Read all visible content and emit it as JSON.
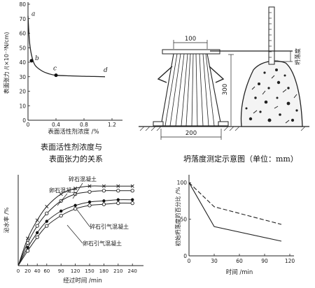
{
  "captions": {
    "surface_tension_line1": "表面活性剂浓度与",
    "surface_tension_line2": "表面张力的关系",
    "slump": "坍落度测定示意图（单位：mm）"
  },
  "slump_diagram": {
    "dim_top": "100",
    "dim_bottom": "200",
    "dim_height": "300",
    "slump_label": "坍落度"
  },
  "chart_data": [
    {
      "type": "line",
      "xlabel": "表面活性剂浓度 /%",
      "ylabel": "表面张力 /(×10⁻³N/cm)",
      "xlim": [
        0,
        1.2
      ],
      "ylim": [
        0,
        80
      ],
      "xticks": [
        "0",
        "0.4",
        "0.8",
        "1.2"
      ],
      "yticks": [
        "0",
        "10",
        "20",
        "30",
        "40",
        "50",
        "60",
        "70",
        "80"
      ],
      "series": [
        {
          "x": [
            0,
            0.02,
            0.05,
            0.1,
            0.2,
            0.3,
            0.4,
            0.6,
            0.8,
            1.0,
            1.1
          ],
          "y": [
            72,
            55,
            45,
            38,
            34,
            32,
            31,
            30.6,
            30.3,
            30.1,
            30
          ]
        }
      ],
      "annotations": [
        {
          "label": "a",
          "x": 0,
          "y": 72
        },
        {
          "label": "b",
          "x": 0.05,
          "y": 41
        },
        {
          "label": "c",
          "x": 0.4,
          "y": 31
        },
        {
          "label": "d",
          "x": 1.1,
          "y": 30
        }
      ]
    },
    {
      "type": "line",
      "xlabel": "经过时间 /min",
      "ylabel": "泌水率 /%",
      "xticks": [
        "0",
        "20",
        "40",
        "60",
        "90",
        "120",
        "150",
        "180",
        "210",
        "240"
      ],
      "xlim": [
        0,
        250
      ],
      "ylim": [
        0,
        8
      ],
      "series": [
        {
          "name": "碎石混凝土",
          "marker": "x",
          "x": [
            0,
            20,
            40,
            60,
            90,
            120,
            150,
            180,
            210,
            240
          ],
          "y": [
            0,
            2.4,
            4.0,
            5.2,
            6.3,
            6.8,
            7.0,
            7.0,
            7.0,
            7.0
          ]
        },
        {
          "name": "卵石混凝土",
          "marker": "o",
          "x": [
            0,
            20,
            40,
            60,
            90,
            120,
            150,
            180,
            210,
            240
          ],
          "y": [
            0,
            2.0,
            3.5,
            4.6,
            5.7,
            6.3,
            6.5,
            6.6,
            6.6,
            6.6
          ]
        },
        {
          "name": "碎石引气混凝土",
          "marker": "filled",
          "x": [
            0,
            20,
            40,
            60,
            90,
            120,
            150,
            180,
            210,
            240
          ],
          "y": [
            0,
            1.6,
            2.9,
            3.9,
            4.8,
            5.3,
            5.6,
            5.7,
            5.8,
            5.8
          ]
        },
        {
          "name": "卵石引气混凝土",
          "marker": "o",
          "x": [
            0,
            20,
            40,
            60,
            90,
            120,
            150,
            180,
            210,
            240
          ],
          "y": [
            0,
            1.3,
            2.5,
            3.5,
            4.4,
            5.0,
            5.3,
            5.4,
            5.5,
            5.5
          ]
        }
      ]
    },
    {
      "type": "line",
      "xlabel": "时间 /min",
      "ylabel": "初始坍落度的百分比 /%",
      "xticks": [
        "0",
        "30",
        "60",
        "90",
        "120"
      ],
      "yticks": [
        "0",
        "50",
        "100"
      ],
      "xlim": [
        0,
        125
      ],
      "ylim": [
        0,
        105
      ],
      "series": [
        {
          "style": "dashed",
          "x": [
            0,
            30,
            110
          ],
          "y": [
            100,
            67,
            43
          ]
        },
        {
          "style": "solid",
          "x": [
            0,
            30,
            110
          ],
          "y": [
            100,
            40,
            20
          ]
        }
      ]
    }
  ]
}
